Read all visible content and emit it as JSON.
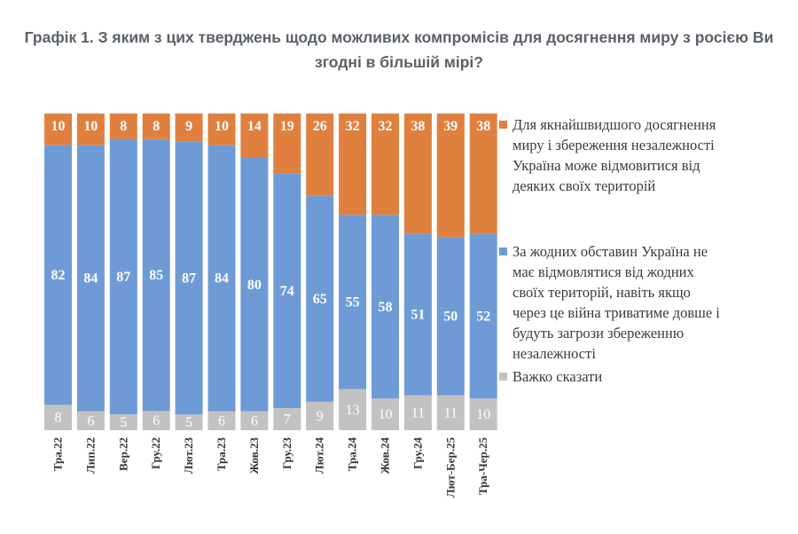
{
  "title": "Графік 1. З яким з цих тверджень щодо можливих компромісів для досягнення миру з росією Ви згодні в більшій мірі?",
  "colors": {
    "territory": "#e0803f",
    "no_concessions": "#6e9bd6",
    "hard_to_say": "#c2c2c2"
  },
  "chart_data": {
    "type": "bar",
    "stacked": true,
    "normalized": true,
    "categories": [
      "Тра.22",
      "Лип.22",
      "Вер.22",
      "Гру.22",
      "Лют.23",
      "Тра.23",
      "Жов.23",
      "Гру.23",
      "Лют.24",
      "Тра.24",
      "Жов.24",
      "Гру.24",
      "Лют-Бер.25",
      "Тра-Чер.25"
    ],
    "series": [
      {
        "name": "Важко сказати",
        "color": "#c2c2c2",
        "values": [
          8,
          6,
          5,
          6,
          5,
          6,
          6,
          7,
          9,
          13,
          10,
          11,
          11,
          10
        ]
      },
      {
        "name": "За жодних обставин Україна не має відмовлятися від жодних своїх територій, навіть якщо через це війна триватиме довше і будуть загрози збереженню незалежності",
        "color": "#6e9bd6",
        "values": [
          82,
          84,
          87,
          85,
          87,
          84,
          80,
          74,
          65,
          55,
          58,
          51,
          50,
          52
        ]
      },
      {
        "name": "Для якнайшвидшого досягнення миру і збереження незалежності Україна може відмовитися від деяких своїх територій",
        "color": "#e0803f",
        "values": [
          10,
          10,
          8,
          8,
          9,
          10,
          14,
          19,
          26,
          32,
          32,
          38,
          39,
          38
        ]
      }
    ],
    "legend_position": "right",
    "legend_items": [
      {
        "label_lines": [
          "Для якнайшвидшого досягнення",
          "миру і збереження незалежності",
          "Україна може відмовитися від",
          "деяких своїх територій"
        ],
        "color": "#e0803f"
      },
      {
        "label_lines": [
          "За жодних обставин Україна не",
          "має відмовлятися від жодних",
          "своїх територій, навіть якщо",
          "через це війна триватиме довше і",
          "будуть загрози збереженню",
          "незалежності"
        ],
        "color": "#6e9bd6"
      },
      {
        "label_lines": [
          "Важко сказати"
        ],
        "color": "#c2c2c2"
      }
    ],
    "grid": false,
    "xlabel": "",
    "ylabel": ""
  }
}
